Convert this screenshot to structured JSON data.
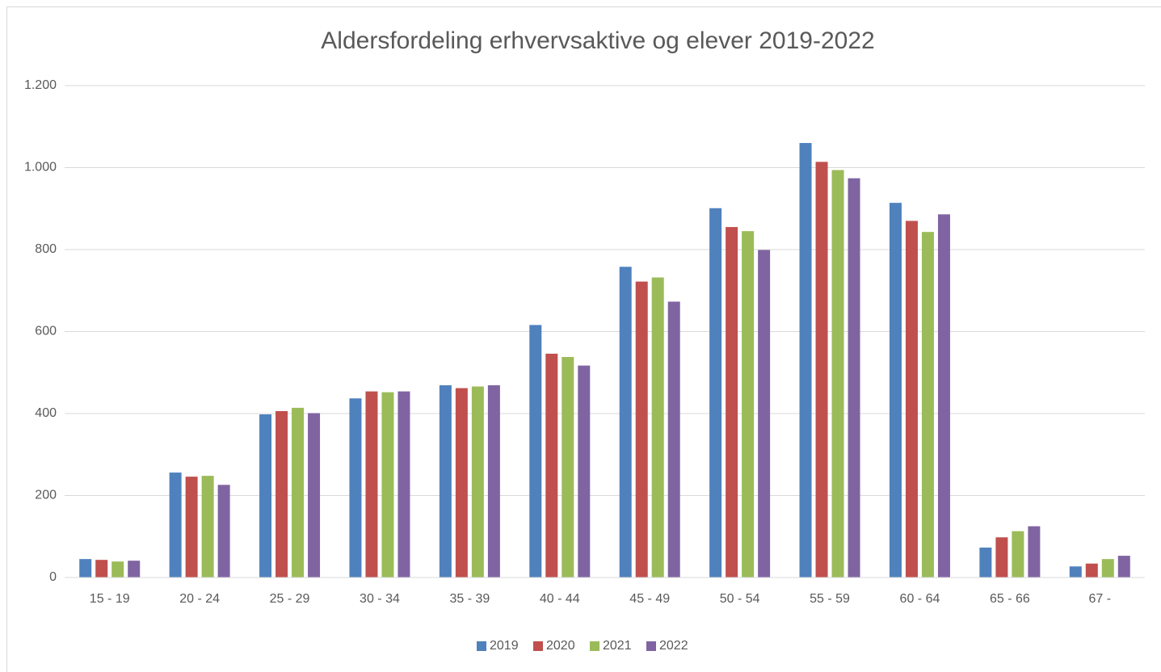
{
  "chart_data": {
    "type": "bar",
    "title": "Aldersfordeling erhvervsaktive og elever 2019-2022",
    "categories": [
      "15 - 19",
      "20 - 24",
      "25 - 29",
      "30 - 34",
      "35 - 39",
      "40 - 44",
      "45 - 49",
      "50 - 54",
      "55 - 59",
      "60 - 64",
      "65 - 66",
      "67 -"
    ],
    "series": [
      {
        "name": "2019",
        "color": "#4f81bd",
        "values": [
          45,
          256,
          398,
          437,
          469,
          616,
          758,
          901,
          1060,
          914,
          73,
          27
        ]
      },
      {
        "name": "2020",
        "color": "#c0504d",
        "values": [
          43,
          246,
          406,
          454,
          462,
          546,
          722,
          855,
          1014,
          870,
          98,
          34
        ]
      },
      {
        "name": "2021",
        "color": "#9bbb59",
        "values": [
          39,
          248,
          414,
          452,
          466,
          538,
          732,
          845,
          994,
          843,
          113,
          45
        ]
      },
      {
        "name": "2022",
        "color": "#8064a2",
        "values": [
          41,
          226,
          401,
          454,
          469,
          517,
          673,
          799,
          974,
          886,
          125,
          53
        ]
      }
    ],
    "ylim": [
      0,
      1200
    ],
    "yticks": [
      0,
      200,
      400,
      600,
      800,
      {
        "value": 1000,
        "label": "1.000"
      },
      {
        "value": 1200,
        "label": "1.200"
      }
    ],
    "grid": true,
    "legend": "bottom"
  }
}
